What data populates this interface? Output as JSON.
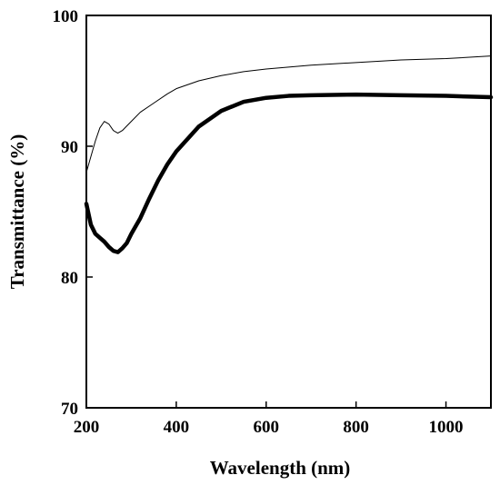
{
  "chart_data": {
    "type": "line",
    "title": "",
    "xlabel": "Wavelength (nm)",
    "ylabel": "Transmittance (%)",
    "xlim": [
      200,
      1100
    ],
    "ylim": [
      70,
      100
    ],
    "x_ticks": [
      200,
      400,
      600,
      800,
      1000
    ],
    "y_ticks": [
      70,
      80,
      90,
      100
    ],
    "x_tick_labels": [
      "200",
      "400",
      "600",
      "800",
      "1000"
    ],
    "y_tick_labels": [
      "70",
      "80",
      "90",
      "100"
    ],
    "grid": false,
    "legend": "none",
    "series": [
      {
        "style": "thin",
        "color": "#000000",
        "x": [
          200,
          210,
          220,
          230,
          240,
          250,
          260,
          270,
          280,
          300,
          320,
          350,
          380,
          400,
          450,
          500,
          550,
          600,
          700,
          800,
          900,
          1000,
          1100
        ],
        "y": [
          88.0,
          89.2,
          90.4,
          91.4,
          91.9,
          91.7,
          91.2,
          91.0,
          91.2,
          91.9,
          92.6,
          93.3,
          94.0,
          94.4,
          95.0,
          95.4,
          95.7,
          95.9,
          96.2,
          96.4,
          96.6,
          96.7,
          96.9
        ]
      },
      {
        "style": "thick",
        "color": "#000000",
        "x": [
          200,
          210,
          220,
          230,
          240,
          250,
          260,
          270,
          280,
          290,
          300,
          320,
          340,
          360,
          380,
          400,
          450,
          500,
          550,
          600,
          650,
          700,
          800,
          900,
          1000,
          1100
        ],
        "y": [
          85.6,
          84.0,
          83.3,
          83.0,
          82.7,
          82.3,
          82.0,
          81.9,
          82.2,
          82.6,
          83.3,
          84.5,
          86.0,
          87.4,
          88.6,
          89.6,
          91.5,
          92.7,
          93.4,
          93.7,
          93.85,
          93.9,
          93.95,
          93.9,
          93.85,
          93.75
        ]
      }
    ]
  }
}
